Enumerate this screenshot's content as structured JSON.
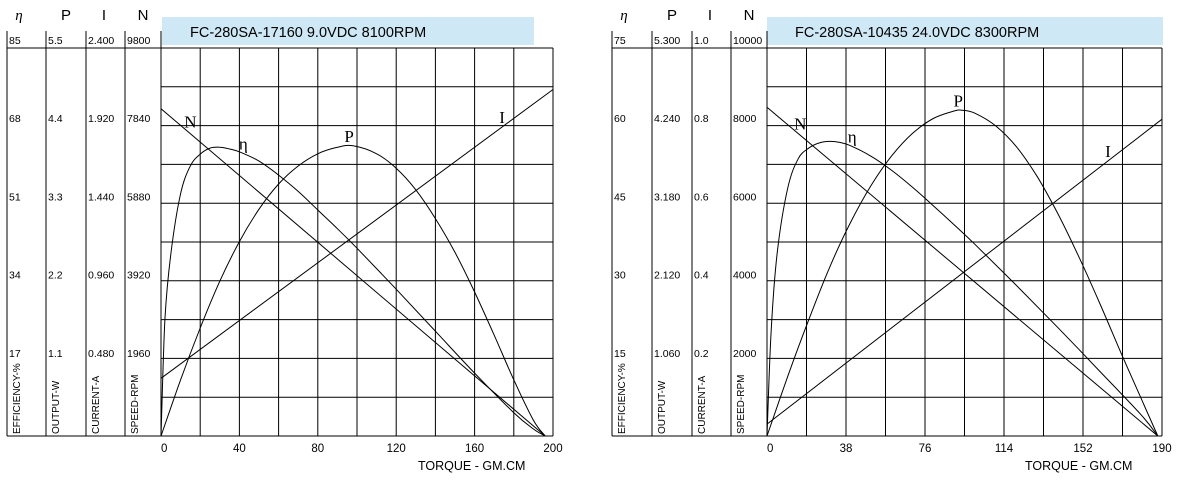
{
  "chart_data": [
    {
      "type": "line",
      "title": "FC-280SA-17160    9.0VDC    8100RPM",
      "title_bg": "#cfe8f6",
      "xlabel": "TORQUE - GM.CM",
      "xlim": [
        0,
        200
      ],
      "x_ticks": [
        "0",
        "40",
        "80",
        "120",
        "160",
        "200"
      ],
      "columns": [
        {
          "symbol": "η",
          "axis_label": "EFFICIENCY-%",
          "ticks": [
            "85",
            "68",
            "51",
            "34",
            "17"
          ]
        },
        {
          "symbol": "P",
          "axis_label": "OUTPUT-W",
          "ticks": [
            "5.5",
            "4.4",
            "3.3",
            "2.2",
            "1.1"
          ]
        },
        {
          "symbol": "I",
          "axis_label": "CURRENT-A",
          "ticks": [
            "2.400",
            "1.920",
            "1.440",
            "0.960",
            "0.480"
          ]
        },
        {
          "symbol": "N",
          "axis_label": "SPEED-RPM",
          "ticks": [
            "9800",
            "7840",
            "5880",
            "3920",
            "1960"
          ]
        }
      ],
      "series": [
        {
          "name": "N",
          "x": [
            0,
            196
          ],
          "y": [
            8100,
            0
          ],
          "label_x": 15
        },
        {
          "name": "I",
          "x": [
            0,
            200
          ],
          "y": [
            0.35,
            2.1
          ],
          "label_x": 174
        },
        {
          "name": "P",
          "x": [
            0,
            10,
            20,
            30,
            40,
            50,
            60,
            70,
            80,
            90,
            98,
            110,
            120,
            130,
            140,
            150,
            160,
            170,
            180,
            190,
            196
          ],
          "y": [
            0,
            0.78,
            1.5,
            2.15,
            2.7,
            3.15,
            3.5,
            3.75,
            3.92,
            4.01,
            4.03,
            3.92,
            3.72,
            3.42,
            3.02,
            2.55,
            2.0,
            1.4,
            0.78,
            0.22,
            0
          ],
          "label_x": 96
        },
        {
          "name": "η",
          "x": [
            0,
            2,
            5,
            10,
            15,
            20,
            25,
            30,
            35,
            40,
            50,
            60,
            70,
            80,
            90,
            100,
            120,
            140,
            160,
            180,
            190,
            196
          ],
          "y": [
            0,
            25,
            39,
            52,
            58,
            60.5,
            61.8,
            62.0,
            61.6,
            61.0,
            59.0,
            56.0,
            52.5,
            48.5,
            44.5,
            40.3,
            31.5,
            22.5,
            13.5,
            5,
            1.5,
            0
          ],
          "label_x": 42
        }
      ]
    },
    {
      "type": "line",
      "title": "FC-280SA-10435    24.0VDC    8300RPM",
      "title_bg": "#cfe8f6",
      "xlabel": "TORQUE - GM.CM",
      "xlim": [
        0,
        190
      ],
      "x_ticks": [
        "0",
        "38",
        "76",
        "114",
        "152",
        "190"
      ],
      "columns": [
        {
          "symbol": "η",
          "axis_label": "EFFICIENCY-%",
          "ticks": [
            "75",
            "60",
            "45",
            "30",
            "15"
          ]
        },
        {
          "symbol": "P",
          "axis_label": "OUTPUT-W",
          "ticks": [
            "5.300",
            "4.240",
            "3.180",
            "2.120",
            "1.060"
          ]
        },
        {
          "symbol": "I",
          "axis_label": "CURRENT-A",
          "ticks": [
            "1.0",
            "0.8",
            "0.6",
            "0.4",
            "0.2"
          ]
        },
        {
          "symbol": "N",
          "axis_label": "SPEED-RPM",
          "ticks": [
            "10000",
            "8000",
            "6000",
            "4000",
            "2000"
          ]
        }
      ],
      "series": [
        {
          "name": "N",
          "x": [
            0,
            188
          ],
          "y": [
            8300,
            0
          ],
          "label_x": 16
        },
        {
          "name": "I",
          "x": [
            0,
            190
          ],
          "y": [
            0.03,
            0.8
          ],
          "label_x": 164
        },
        {
          "name": "P",
          "x": [
            0,
            10,
            20,
            30,
            40,
            50,
            60,
            70,
            80,
            90,
            94,
            100,
            110,
            120,
            130,
            140,
            150,
            160,
            170,
            180,
            188
          ],
          "y": [
            0,
            0.8,
            1.55,
            2.25,
            2.85,
            3.35,
            3.75,
            4.05,
            4.25,
            4.35,
            4.36,
            4.32,
            4.15,
            3.87,
            3.47,
            2.97,
            2.4,
            1.78,
            1.13,
            0.5,
            0
          ],
          "label_x": 92
        },
        {
          "name": "η",
          "x": [
            0,
            2,
            5,
            10,
            15,
            20,
            25,
            30,
            35,
            40,
            50,
            60,
            70,
            80,
            90,
            100,
            120,
            140,
            160,
            180,
            188
          ],
          "y": [
            0,
            20,
            35,
            47,
            52.5,
            54.5,
            55.5,
            55.8,
            55.6,
            55.0,
            53.0,
            50.3,
            47.1,
            43.6,
            40.0,
            36.3,
            28.5,
            20.5,
            12.3,
            4,
            0
          ],
          "label_x": 41
        }
      ]
    }
  ]
}
